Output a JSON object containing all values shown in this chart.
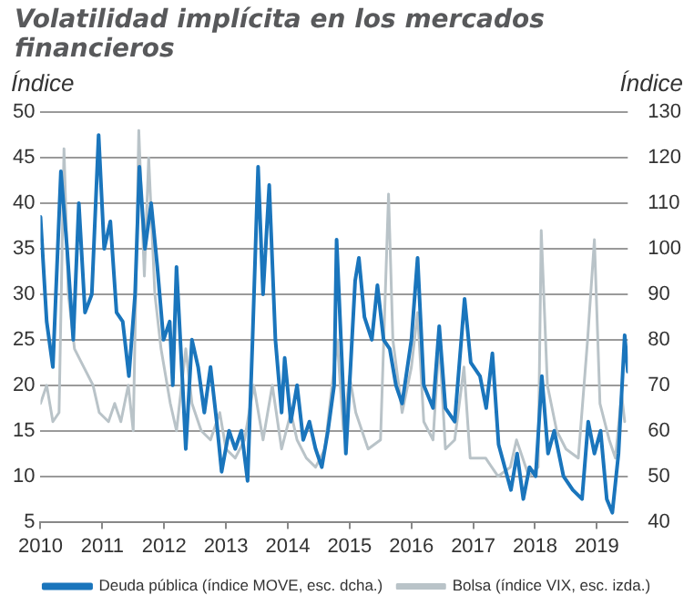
{
  "chart_data": {
    "type": "line",
    "title": "Volatilidad implícita en los mercados financieros",
    "ylabel": "Índice",
    "y2label": "Índice",
    "xlim": [
      2010,
      2019.5
    ],
    "xticks": [
      2010,
      2011,
      2012,
      2013,
      2014,
      2015,
      2016,
      2017,
      2018,
      2019
    ],
    "ylim": [
      5,
      50
    ],
    "yticks": [
      5,
      10,
      15,
      20,
      25,
      30,
      35,
      40,
      45,
      50
    ],
    "y2lim": [
      40,
      130
    ],
    "y2ticks": [
      40,
      50,
      60,
      70,
      80,
      90,
      100,
      110,
      120,
      130
    ],
    "grid": "y",
    "legend": "bottom",
    "marker": "none",
    "line_style": "solid",
    "series": [
      {
        "name": "Bolsa (índice VIX, esc. izda.)",
        "color": "#b9c3c8",
        "x": [
          2010.0,
          2010.1,
          2010.2,
          2010.3,
          2010.38,
          2010.45,
          2010.55,
          2010.7,
          2010.85,
          2010.95,
          2011.1,
          2011.2,
          2011.3,
          2011.42,
          2011.5,
          2011.59,
          2011.68,
          2011.75,
          2011.85,
          2011.95,
          2012.1,
          2012.2,
          2012.35,
          2012.45,
          2012.6,
          2012.75,
          2012.9,
          2013.0,
          2013.15,
          2013.3,
          2013.45,
          2013.6,
          2013.75,
          2013.9,
          2014.05,
          2014.15,
          2014.3,
          2014.45,
          2014.6,
          2014.8,
          2014.9,
          2015.0,
          2015.1,
          2015.3,
          2015.5,
          2015.63,
          2015.7,
          2015.85,
          2016.0,
          2016.1,
          2016.2,
          2016.35,
          2016.45,
          2016.55,
          2016.7,
          2016.85,
          2016.95,
          2017.2,
          2017.4,
          2017.6,
          2017.7,
          2017.9,
          2018.05,
          2018.1,
          2018.2,
          2018.35,
          2018.5,
          2018.7,
          2018.85,
          2018.96,
          2019.05,
          2019.2,
          2019.3,
          2019.4,
          2019.45
        ],
        "values": [
          18,
          20,
          16,
          17,
          46,
          30,
          24,
          22,
          20,
          17,
          16,
          18,
          16,
          20,
          15,
          48,
          32,
          45,
          30,
          24,
          18,
          15,
          24,
          18,
          15,
          14,
          17,
          13,
          12,
          14,
          20,
          14,
          20,
          13,
          17,
          14,
          12,
          11,
          13,
          25,
          15,
          21,
          17,
          13,
          14,
          41,
          25,
          17,
          22,
          28,
          16,
          14,
          25,
          13,
          14,
          22,
          12,
          12,
          10,
          11,
          14,
          10,
          11,
          37,
          20,
          15,
          13,
          12,
          25,
          36,
          18,
          14,
          12,
          19,
          16
        ]
      },
      {
        "name": "Deuda pública (índice MOVE, esc. dcha.)",
        "color": "#1a75bc",
        "axis": "y2",
        "x": [
          2010.0,
          2010.1,
          2010.2,
          2010.33,
          2010.43,
          2010.53,
          2010.62,
          2010.72,
          2010.83,
          2010.94,
          2011.03,
          2011.13,
          2011.23,
          2011.33,
          2011.43,
          2011.53,
          2011.6,
          2011.69,
          2011.79,
          2011.89,
          2011.99,
          2012.09,
          2012.14,
          2012.2,
          2012.3,
          2012.35,
          2012.45,
          2012.55,
          2012.65,
          2012.75,
          2012.85,
          2012.93,
          2013.05,
          2013.15,
          2013.25,
          2013.35,
          2013.43,
          2013.52,
          2013.6,
          2013.7,
          2013.8,
          2013.9,
          2013.95,
          2014.05,
          2014.15,
          2014.25,
          2014.35,
          2014.45,
          2014.55,
          2014.65,
          2014.75,
          2014.79,
          2014.94,
          2015.09,
          2015.15,
          2015.24,
          2015.36,
          2015.45,
          2015.55,
          2015.65,
          2015.75,
          2015.85,
          2016.0,
          2016.1,
          2016.2,
          2016.35,
          2016.45,
          2016.55,
          2016.7,
          2016.86,
          2016.96,
          2017.11,
          2017.21,
          2017.31,
          2017.41,
          2017.51,
          2017.61,
          2017.71,
          2017.81,
          2017.91,
          2018.01,
          2018.11,
          2018.21,
          2018.31,
          2018.46,
          2018.61,
          2018.76,
          2018.86,
          2018.96,
          2019.06,
          2019.16,
          2019.25,
          2019.35,
          2019.45,
          2019.5
        ],
        "values": [
          107,
          84,
          74,
          117,
          100,
          80,
          110,
          86,
          90,
          125,
          100,
          106,
          86,
          84,
          72,
          90,
          118,
          100,
          110,
          96,
          80,
          84,
          70,
          96,
          70,
          56,
          80,
          74,
          64,
          74,
          62,
          51,
          60,
          56,
          60,
          49,
          80,
          118,
          90,
          114,
          80,
          64,
          76,
          62,
          70,
          58,
          62,
          56,
          52,
          60,
          70,
          102,
          55,
          93,
          98,
          85,
          80,
          92,
          80,
          78,
          70,
          66,
          80,
          98,
          70,
          65,
          83,
          65,
          62,
          89,
          75,
          72,
          65,
          77,
          57,
          52,
          47,
          55,
          45,
          52,
          50,
          72,
          55,
          60,
          50,
          47,
          45,
          62,
          55,
          60,
          45,
          42,
          55,
          81,
          73
        ]
      }
    ]
  }
}
